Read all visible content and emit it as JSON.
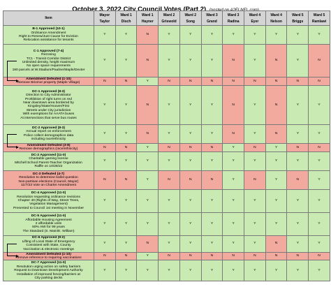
{
  "title": "October 3, 2022 City Council Votes (Part 2)",
  "subtitle": "(posted on A2ELNEL.com)",
  "colors": {
    "yes": "#c9ebb3",
    "no": "#f2a99e",
    "header": "#d4d4d4"
  },
  "header": {
    "item": "Item",
    "columns": [
      {
        "ward": "Mayor",
        "name": "Taylor"
      },
      {
        "ward": "Ward 1",
        "name": "Disch"
      },
      {
        "ward": "Ward 1",
        "name": "Hayner"
      },
      {
        "ward": "Ward 2",
        "name": "Griswold"
      },
      {
        "ward": "Ward 2",
        "name": "Song"
      },
      {
        "ward": "Ward 3",
        "name": "Grand"
      },
      {
        "ward": "Ward 3",
        "name": "Radina"
      },
      {
        "ward": "Ward 4",
        "name": "Eyer"
      },
      {
        "ward": "Ward 4",
        "name": "Nelson"
      },
      {
        "ward": "Ward 5",
        "name": "Briggs"
      },
      {
        "ward": "Ward 5",
        "name": "Ramlawi"
      }
    ]
  },
  "rows": [
    {
      "title": "B-1 Approved (10-1)",
      "lines": [
        "Ordinance Amendment",
        "Right to Renew/Just Cause for Eviction",
        "Relocation assistance for tenants"
      ],
      "status": "green",
      "arrow": "",
      "votes": [
        "Y",
        "Y",
        "N",
        "Y",
        "Y",
        "Y",
        "Y",
        "Y",
        "Y",
        "Y",
        "Y"
      ]
    },
    {
      "title": "C-1 Approved (7-4)",
      "lines": [
        "Rezoning",
        "TC1 - Transit Corridor District",
        "Unlimited density, height maximum",
        "No open space requirements",
        "190 parcels at W.Stadium/Pauline/Maple/Dexter"
      ],
      "status": "green",
      "arrow": "start",
      "votes": [
        "Y",
        "Y",
        "N",
        "Y",
        "Y",
        "Y",
        "N",
        "Y",
        "N",
        "Y",
        "N"
      ]
    },
    {
      "title": "Amendment Defeated (1-10)",
      "lines": [
        "Remove Brixmor property (Maple Village)"
      ],
      "status": "red",
      "arrow": "end",
      "votes": [
        "N",
        "N",
        "Y",
        "N",
        "N",
        "N",
        "N",
        "N",
        "N",
        "N",
        "N"
      ]
    },
    {
      "title": "DC-1 Approved (8-3)",
      "lines": [
        "Direction to City Administrator",
        "Prohibition of right turns on red",
        "Near downtown area bordered by",
        "Kingsley/State/Hoover/First",
        "Streets under City jurisdiction",
        "With exemptions for AAATA buses",
        "At intersections that serve bus routes"
      ],
      "status": "green",
      "arrow": "start",
      "votes": [
        "Y",
        "Y",
        "N",
        "Y",
        "Y",
        "Y",
        "N",
        "Y",
        "N",
        "Y",
        "Y"
      ]
    },
    {
      "title": "DC-2 Approved (8-3)",
      "lines": [
        "Annual report on enforcement",
        "Police collect demographics data",
        "including race/ethnicity"
      ],
      "status": "green",
      "arrow": "start",
      "votes": [
        "Y",
        "Y",
        "N",
        "Y",
        "Y",
        "Y",
        "N",
        "Y",
        "N",
        "Y",
        "Y"
      ]
    },
    {
      "title": "Amendment Defeated (3-8)",
      "lines": [
        "Remove demographics (race/ethnicity)"
      ],
      "status": "red",
      "arrow": "end",
      "votes": [
        "N",
        "N",
        "Y",
        "N",
        "N",
        "N",
        "Y",
        "N",
        "Y",
        "N",
        "N"
      ]
    },
    {
      "title": "DC-2 Approved (11-0)",
      "lines": [
        "Charitable gaming license",
        "Mitchell School Parent-Teacher Organization",
        "Raffle on 10/28/22"
      ],
      "status": "green",
      "arrow": "",
      "votes": [
        "Y",
        "Y",
        "Y",
        "Y",
        "Y",
        "Y",
        "Y",
        "Y",
        "Y",
        "Y",
        "Y"
      ]
    },
    {
      "title": "DC-3 Defeated (4-7)",
      "lines": [
        "Resolution to determine ballot question",
        "Non-partisan elections (Council, Mayor)",
        "11/7/23 Vote on Charter Amendment"
      ],
      "status": "red",
      "arrow": "",
      "votes": [
        "N",
        "N",
        "Y",
        "N",
        "N",
        "N",
        "Y",
        "N",
        "Y",
        "N",
        "Y"
      ]
    },
    {
      "title": "DC-4 Approved (11-0)",
      "lines": [
        "Resolution requesting ordinance revisions",
        "Chapter 40 (Rights of Way, Street Trees,",
        "Vegetation Management)",
        "Presented to Council 1st meeting in November"
      ],
      "status": "green",
      "arrow": "",
      "votes": [
        "Y",
        "Y",
        "Y",
        "Y",
        "Y",
        "Y",
        "Y",
        "Y",
        "Y",
        "Y",
        "Y"
      ]
    },
    {
      "title": "DC-5 Approved (11-0)",
      "lines": [
        "Affordable Housing Agreement",
        "2 affordable units",
        "60% AMI for 99 years",
        "The Standard (S. Main/E. William)"
      ],
      "status": "green",
      "arrow": "",
      "votes": [
        "Y",
        "Y",
        "Y",
        "Y",
        "Y",
        "Y",
        "Y",
        "Y",
        "Y",
        "Y",
        "Y"
      ]
    },
    {
      "title": "DC-6 Approved (9-2)",
      "lines": [
        "Lifting of Local State of Emergency",
        "Consistent with State, County",
        "Vaccination & electronic meetings"
      ],
      "status": "green",
      "arrow": "start",
      "votes": [
        "Y",
        "Y",
        "N",
        "Y",
        "Y",
        "Y",
        "Y",
        "Y",
        "N",
        "Y",
        "Y"
      ]
    },
    {
      "title": "Amendment Defeated (1-10)",
      "lines": [
        "Remove reference to requiring vaccinations"
      ],
      "status": "red",
      "arrow": "end",
      "votes": [
        "N",
        "N",
        "Y",
        "N",
        "N",
        "N",
        "N",
        "N",
        "N",
        "N",
        "N"
      ]
    },
    {
      "title": "DC-7 Approved (11-0)",
      "lines": [
        "Resolution urging action on safety barriers",
        "Request to Downtown Development Authority",
        "Installation of improved fencing/barriers at",
        "City parking decks"
      ],
      "status": "green",
      "arrow": "",
      "votes": [
        "Y",
        "Y",
        "Y",
        "Y",
        "Y",
        "Y",
        "Y",
        "Y",
        "Y",
        "Y",
        "Y"
      ]
    }
  ]
}
